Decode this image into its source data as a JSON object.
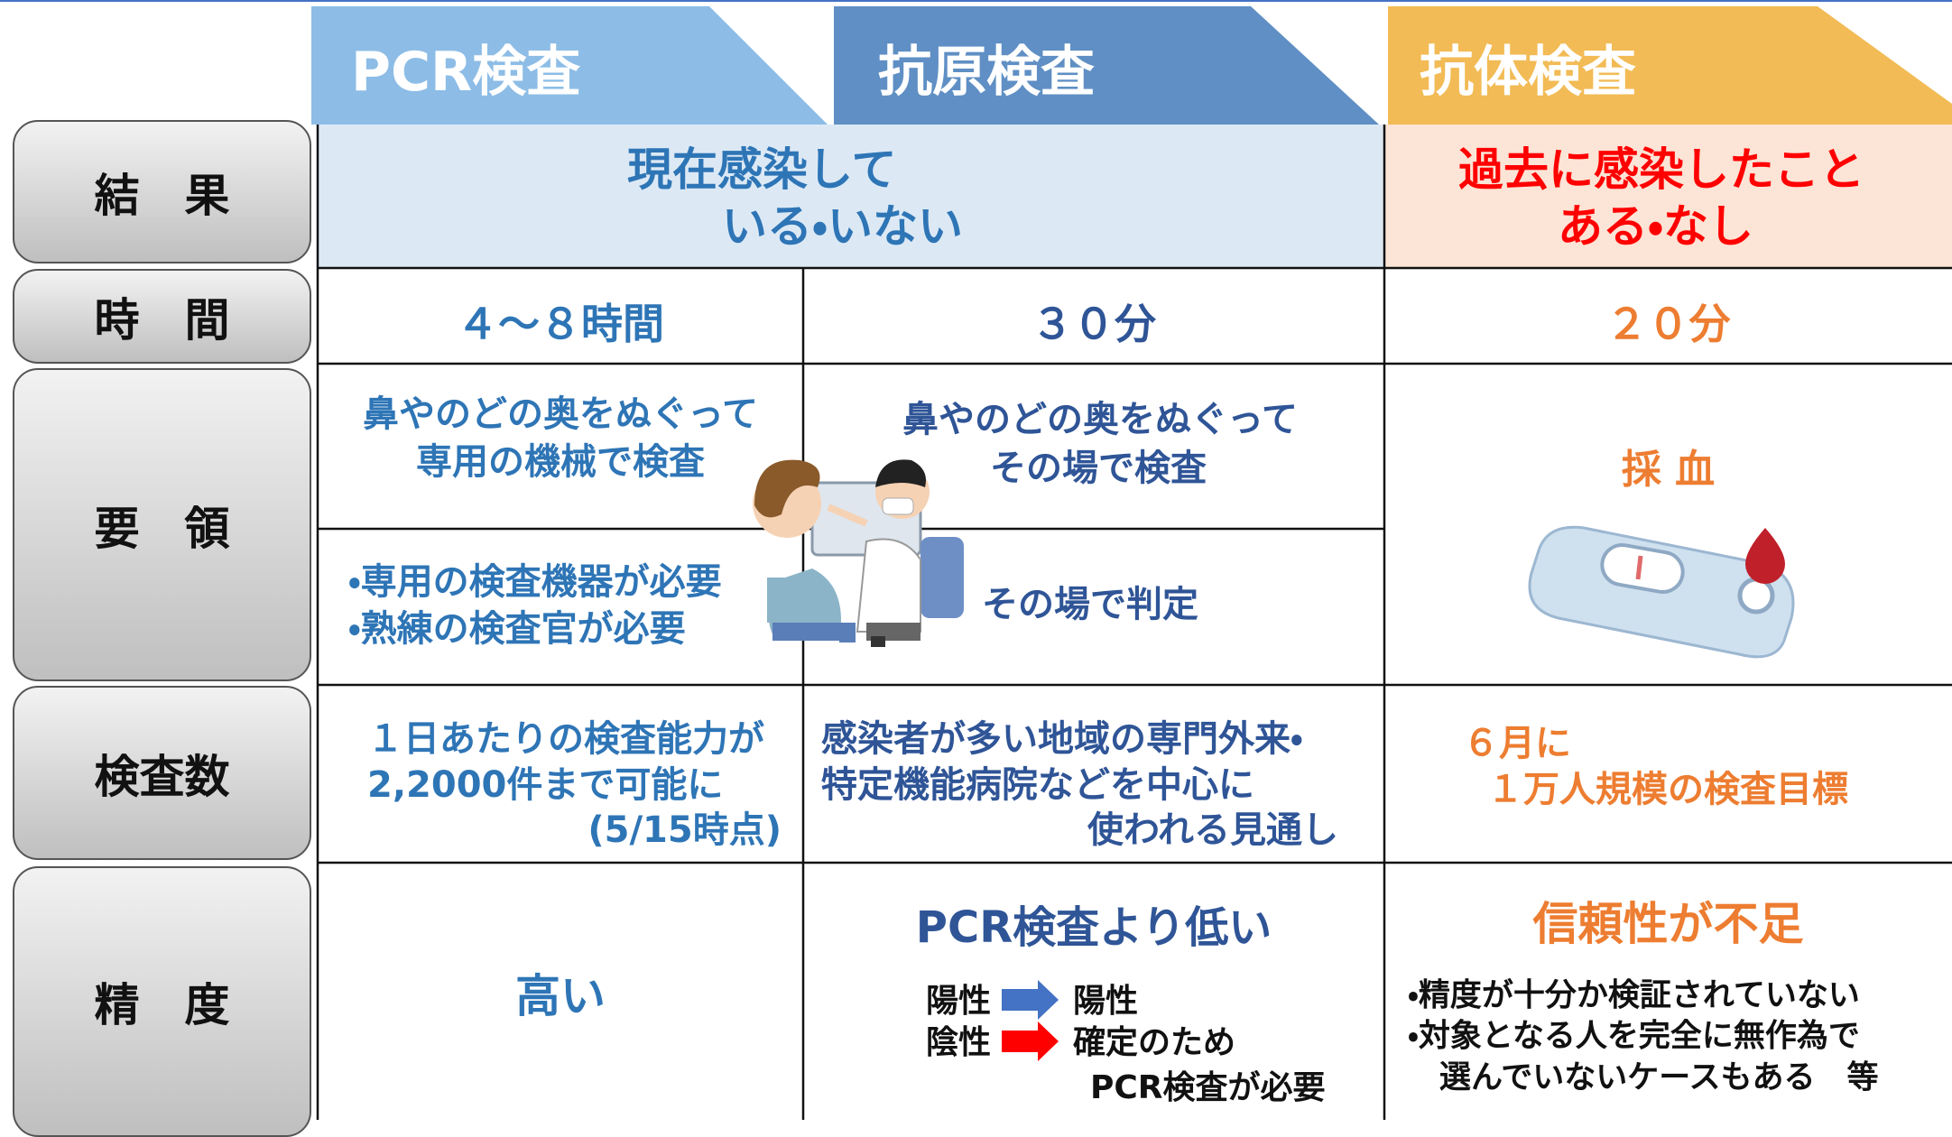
{
  "header": {
    "tabs": [
      "PCR検査",
      "抗原検査",
      "抗体検査"
    ]
  },
  "rows": {
    "result": {
      "label": "結　果",
      "current": [
        "現在感染して",
        "いる・いない"
      ],
      "past": [
        "過去に感染したこと",
        "ある・なし"
      ]
    },
    "time": {
      "label": "時　間",
      "values": [
        "４～８時間",
        "３０分",
        "２０分"
      ]
    },
    "method": {
      "label": "要　領",
      "pcr": [
        "鼻やのどの奥をぬぐって",
        "専用の機械で検査"
      ],
      "pcr_notes": [
        "・専用の検査機器が必要",
        "・熟練の検査官が必要"
      ],
      "antigen": [
        "鼻やのどの奥をぬぐって",
        "その場で検査"
      ],
      "antigen_note": "その場で判定",
      "antibody": "採 血"
    },
    "count": {
      "label": "検査数",
      "pcr": [
        "１日あたりの検査能力が",
        "2,2000件まで可能に",
        "(5/15時点)"
      ],
      "antigen": [
        "感染者が多い地域の専門外来・",
        "特定機能病院などを中心に",
        "使われる見通し"
      ],
      "antibody": [
        "６月に",
        "１万人規模の検査目標"
      ]
    },
    "accuracy": {
      "label": "精　度",
      "pcr": "高い",
      "antigen_title": "PCR検査より低い",
      "positive": [
        "陽性",
        "陽性"
      ],
      "negative": [
        "陰性",
        "確定のため"
      ],
      "antigen_footer": "PCR検査が必要",
      "antibody_title": "信頼性が不足",
      "antibody_notes": [
        "・精度が十分か検証されていない",
        "・対象となる人を完全に無作為で",
        "　選んでいないケースもある　等"
      ]
    }
  }
}
